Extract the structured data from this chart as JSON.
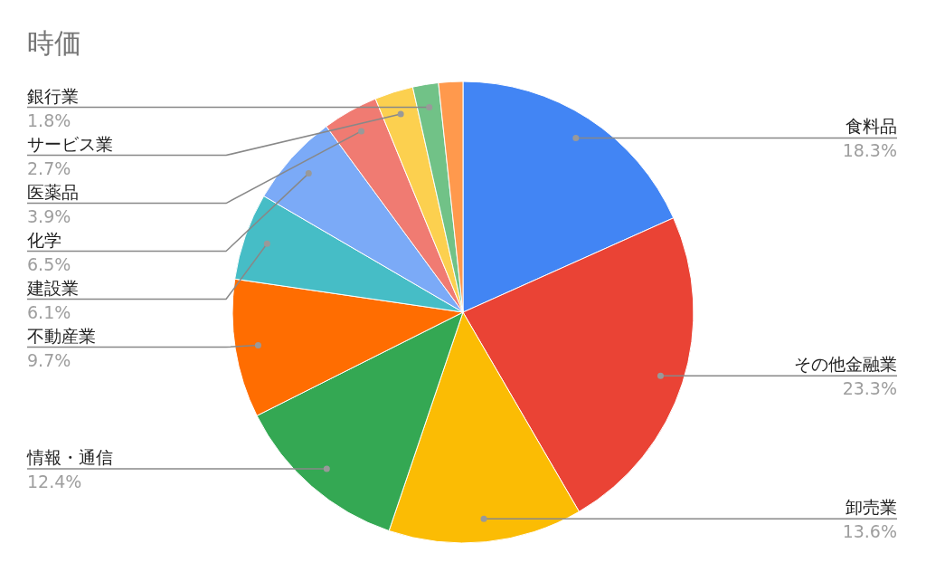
{
  "chart_data": {
    "type": "pie",
    "title": "時価",
    "categories": [
      "食料品",
      "その他金融業",
      "卸売業",
      "情報・通信",
      "不動産業",
      "建設業",
      "化学",
      "医薬品",
      "サービス業",
      "銀行業",
      null
    ],
    "values": [
      18.3,
      23.3,
      13.6,
      12.4,
      9.7,
      6.1,
      6.5,
      3.9,
      2.7,
      1.8,
      1.7
    ],
    "value_labels": [
      "18.3%",
      "23.3%",
      "13.6%",
      "12.4%",
      "9.7%",
      "6.1%",
      "6.5%",
      "3.9%",
      "2.7%",
      "1.8%",
      null
    ],
    "colors": [
      "#4285f4",
      "#ea4335",
      "#fbbc04",
      "#34a853",
      "#ff6d01",
      "#46bdc6",
      "#7baaf7",
      "#f07b72",
      "#fcd04f",
      "#71c287",
      "#ff994d"
    ]
  }
}
